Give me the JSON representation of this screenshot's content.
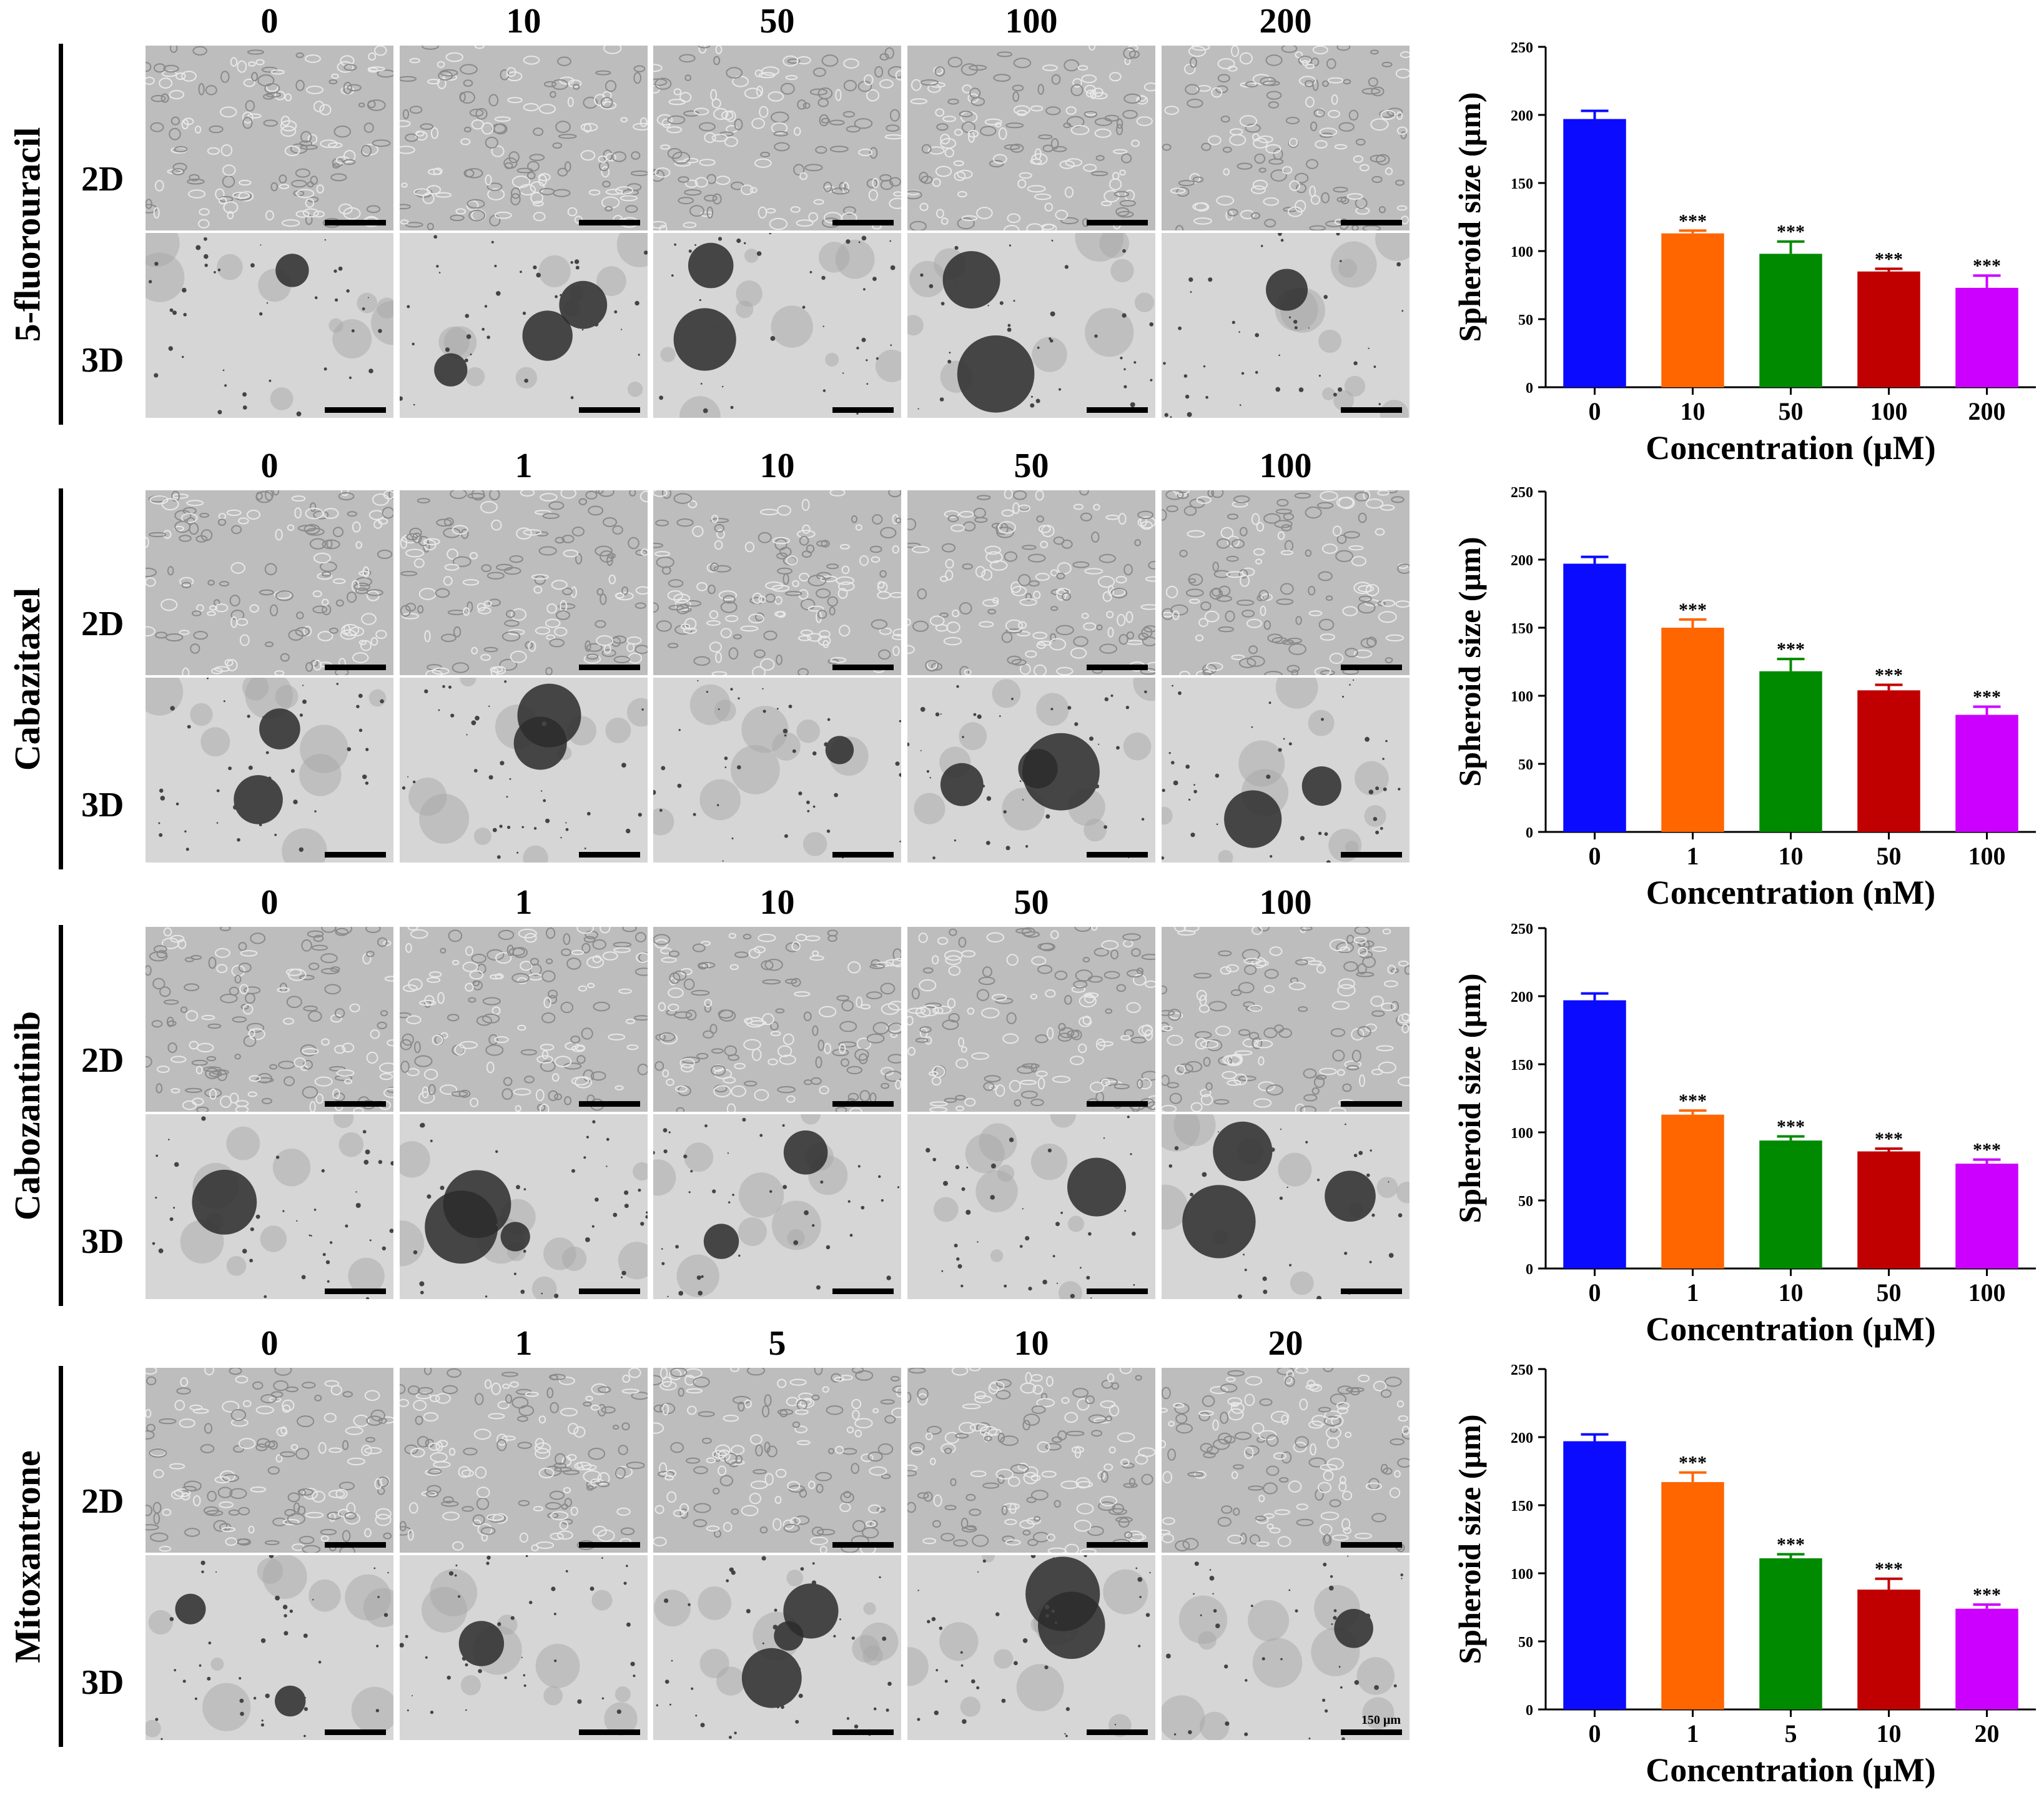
{
  "row_labels": [
    "2D",
    "3D"
  ],
  "scale_bar_label": "150 µm",
  "colors": [
    "#0b0bff",
    "#ff6600",
    "#008a00",
    "#c00000",
    "#cc00ff"
  ],
  "panels": [
    {
      "drug": "5-fluorouracil",
      "columns": [
        "0",
        "10",
        "50",
        "100",
        "200"
      ]
    },
    {
      "drug": "Cabazitaxel",
      "columns": [
        "0",
        "1",
        "10",
        "50",
        "100"
      ]
    },
    {
      "drug": "Cabozantinib",
      "columns": [
        "0",
        "1",
        "10",
        "50",
        "100"
      ]
    },
    {
      "drug": "Mitoxantrone",
      "columns": [
        "0",
        "1",
        "5",
        "10",
        "20"
      ]
    }
  ],
  "chart_data": [
    {
      "type": "bar",
      "categories": [
        "0",
        "10",
        "50",
        "100",
        "200"
      ],
      "values": [
        197,
        113,
        98,
        85,
        73
      ],
      "errors": [
        6,
        2,
        9,
        2,
        9
      ],
      "significance": [
        "",
        "***",
        "***",
        "***",
        "***"
      ],
      "xlabel": "Concentration (µM)",
      "ylabel": "Spheroid size (µm)",
      "ylim": [
        0,
        250
      ],
      "yticks": [
        "0",
        "50",
        "100",
        "150",
        "200",
        "250"
      ]
    },
    {
      "type": "bar",
      "categories": [
        "0",
        "1",
        "10",
        "50",
        "100"
      ],
      "values": [
        197,
        150,
        118,
        104,
        86
      ],
      "errors": [
        5,
        6,
        9,
        4,
        6
      ],
      "significance": [
        "",
        "***",
        "***",
        "***",
        "***"
      ],
      "xlabel": "Concentration (nM)",
      "ylabel": "Spheroid size (µm)",
      "ylim": [
        0,
        250
      ],
      "yticks": [
        "0",
        "50",
        "100",
        "150",
        "200",
        "250"
      ]
    },
    {
      "type": "bar",
      "categories": [
        "0",
        "1",
        "10",
        "50",
        "100"
      ],
      "values": [
        197,
        113,
        94,
        86,
        77
      ],
      "errors": [
        5,
        3,
        3,
        2,
        3
      ],
      "significance": [
        "",
        "***",
        "***",
        "***",
        "***"
      ],
      "xlabel": "Concentration (µM)",
      "ylabel": "Spheroid size (µm)",
      "ylim": [
        0,
        250
      ],
      "yticks": [
        "0",
        "50",
        "100",
        "150",
        "200",
        "250"
      ]
    },
    {
      "type": "bar",
      "categories": [
        "0",
        "1",
        "5",
        "10",
        "20"
      ],
      "values": [
        197,
        167,
        111,
        88,
        74
      ],
      "errors": [
        5,
        7,
        3,
        8,
        3
      ],
      "significance": [
        "",
        "***",
        "***",
        "***",
        "***"
      ],
      "xlabel": "Concentration (µM)",
      "ylabel": "Spheroid size (µm)",
      "ylim": [
        0,
        250
      ],
      "yticks": [
        "0",
        "50",
        "100",
        "150",
        "200",
        "250"
      ]
    }
  ]
}
